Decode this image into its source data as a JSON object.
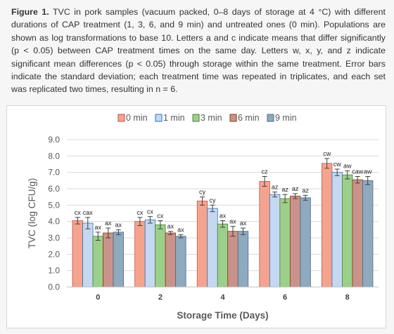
{
  "caption": {
    "label": "Figure 1.",
    "text": " TVC in pork samples (vacuum packed, 0–8 days of storage at 4 °C) with different durations of CAP treatment (1, 3, 6, and 9 min) and untreated ones (0 min). Populations are shown as log transformations to base 10. Letters a and c indicate means that differ significantly (p < 0.05) between CAP treatment times on the same day. Letters w, x, y, and z indicate significant mean differences (p < 0.05) through storage within the same treatment. Error bars indicate the standard deviation; each treatment time was repeated in triplicates, and each set was replicated two times, resulting in n = 6."
  },
  "chart_data": {
    "type": "bar",
    "xlabel": "Storage Time (Days)",
    "ylabel": "TVC (log CFU/g)",
    "ylim": [
      0,
      9
    ],
    "yticks": [
      "0.0",
      "1.0",
      "2.0",
      "3.0",
      "4.0",
      "5.0",
      "6.0",
      "7.0",
      "8.0",
      "9.0"
    ],
    "categories": [
      "0",
      "2",
      "4",
      "6",
      "8"
    ],
    "legend_position": "top",
    "series": [
      {
        "name": "0 min",
        "color": "#f4a48e",
        "edge": "#c0504d",
        "values": [
          4.05,
          4.0,
          5.25,
          6.45,
          7.55
        ],
        "errors": [
          0.2,
          0.25,
          0.25,
          0.3,
          0.3
        ],
        "labels": [
          "cx",
          "cx",
          "cy",
          "cz",
          "cw"
        ]
      },
      {
        "name": "1 min",
        "color": "#c5d8f1",
        "edge": "#2e75b6",
        "values": [
          3.9,
          4.1,
          4.8,
          5.65,
          7.0
        ],
        "errors": [
          0.35,
          0.2,
          0.2,
          0.15,
          0.2
        ],
        "labels": [
          "cax",
          "cx",
          "cy",
          "az",
          "cw"
        ]
      },
      {
        "name": "3 min",
        "color": "#9ccf8a",
        "edge": "#548235",
        "values": [
          3.1,
          3.8,
          3.85,
          5.4,
          6.85
        ],
        "errors": [
          0.25,
          0.25,
          0.2,
          0.25,
          0.25
        ],
        "labels": [
          "ax",
          "cx",
          "ax",
          "az",
          "aw"
        ]
      },
      {
        "name": "6 min",
        "color": "#c9938b",
        "edge": "#843c0c",
        "values": [
          3.3,
          3.3,
          3.4,
          5.55,
          6.55
        ],
        "errors": [
          0.3,
          0.1,
          0.3,
          0.15,
          0.2
        ],
        "labels": [
          "ax",
          "ax",
          "ax",
          "az",
          "caw"
        ]
      },
      {
        "name": "9 min",
        "color": "#8fa9bf",
        "edge": "#4f6a85",
        "values": [
          3.35,
          3.1,
          3.4,
          5.45,
          6.5
        ],
        "errors": [
          0.15,
          0.1,
          0.2,
          0.15,
          0.25
        ],
        "labels": [
          "ax",
          "ax",
          "ax",
          "az",
          "aw"
        ]
      }
    ]
  }
}
